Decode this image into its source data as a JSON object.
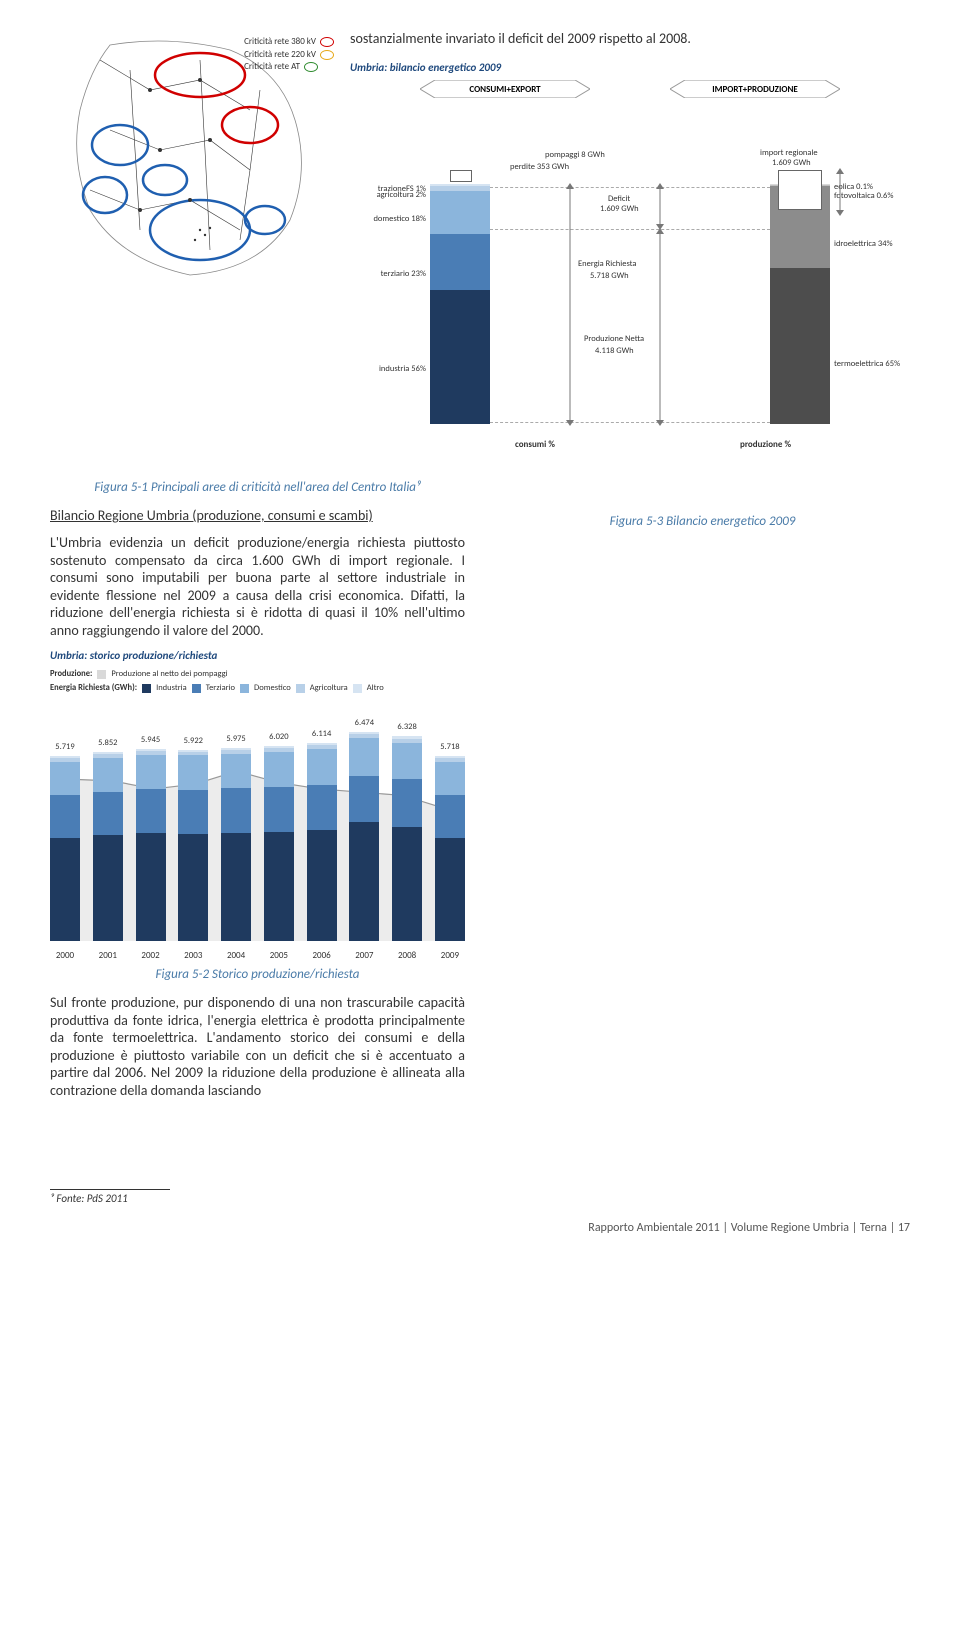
{
  "intro": "sostanzialmente invariato il deficit del 2009 rispetto al 2008.",
  "legend_criticita": {
    "l380": "Criticità rete 380 kV",
    "l220": "Criticità rete 220 kV",
    "lAT": "Criticità rete AT",
    "c380": "#d00000",
    "c220": "#e6a817",
    "cAT": "#2e8b2e"
  },
  "bilancio": {
    "title": "Umbria: bilancio energetico 2009",
    "tri_left": "CONSUMI+EXPORT",
    "tri_right": "IMPORT+PRODUZIONE",
    "labels": {
      "pompaggi": "pompaggi 8 GWh",
      "perdite": "perdite 353 GWh",
      "trazioneFS": "trazioneFS 1%",
      "agricoltura": "agricoltura 2%",
      "domestico": "domestico 18%",
      "terziario": "terziario 23%",
      "industria": "industria 56%",
      "energiaRichiesta": "Energia Richiesta",
      "energiaRichiestaVal": "5.718 GWh",
      "deficit": "Deficit",
      "deficitVal": "1.609 GWh",
      "produzioneNetta": "Produzione Netta",
      "produzioneNettaVal": "4.118 GWh",
      "importReg": "import regionale",
      "importRegVal": "1.609 GWh",
      "eolica": "eolica 0.1%",
      "fotovolt": "fotovoltaica 0.6%",
      "idro": "idroelettrica 34%",
      "termo": "termoelettrica 65%",
      "consumi_caption": "consumi %",
      "produzione_caption": "produzione %"
    },
    "consumi_colors": {
      "trazioneFS": "#d6e4f2",
      "agricoltura": "#b8d0e8",
      "domestico": "#8bb5dc",
      "terziario": "#4a7db5",
      "industria": "#1f3a5f"
    },
    "produzione_colors": {
      "eolica": "#d9d9d9",
      "fotovolt": "#bfbfbf",
      "idro": "#8c8c8c",
      "termo": "#4d4d4d"
    },
    "consumi_pct": {
      "trazioneFS": 1,
      "agricoltura": 2,
      "domestico": 18,
      "terziario": 23,
      "industria": 56
    },
    "produzione_pct": {
      "eolica": 0.1,
      "fotovolt": 0.6,
      "idro": 34,
      "termo": 65
    }
  },
  "fig51": "Figura 5-1 Principali aree di criticità nell'area del Centro Italia⁹",
  "fig52": "Figura 5-2 Storico produzione/richiesta",
  "fig53": "Figura 5-3 Bilancio energetico 2009",
  "bilancio_heading": "Bilancio Regione Umbria (produzione, consumi e scambi)",
  "para1": "L'Umbria evidenzia un deficit produzione/energia richiesta piuttosto sostenuto compensato da circa 1.600 GWh di import regionale. I consumi sono imputabili per buona parte al settore industriale in evidente flessione nel 2009 a causa della crisi economica. Difatti, la riduzione dell'energia richiesta si è ridotta di quasi il 10% nell'ultimo anno raggiungendo il valore del 2000.",
  "para2": "Sul fronte produzione, pur disponendo di una non trascurabile capacità produttiva da fonte idrica, l'energia elettrica è prodotta principalmente da fonte termoelettrica. L'andamento storico dei consumi e della produzione è piuttosto variabile con un deficit che si è accentuato a partire dal 2006. Nel 2009 la riduzione della produzione è allineata alla contrazione della domanda lasciando",
  "storico": {
    "title": "Umbria: storico produzione/richiesta",
    "legend": {
      "produzione_label": "Produzione:",
      "produzione_item": "Produzione al netto dei pompaggi",
      "energia_label": "Energia Richiesta (GWh):",
      "industria": "Industria",
      "terziario": "Terziario",
      "domestico": "Domestico",
      "agricoltura": "Agricoltura",
      "altro": "Altro"
    },
    "colors": {
      "industria": "#1f3a5f",
      "terziario": "#4a7db5",
      "domestico": "#8bb5dc",
      "agricoltura": "#b8d0e8",
      "altro": "#d6e4f2",
      "prod_box": "#d9d9d9"
    },
    "years": [
      "2000",
      "2001",
      "2002",
      "2003",
      "2004",
      "2005",
      "2006",
      "2007",
      "2008",
      "2009"
    ],
    "totals": [
      "5.719",
      "5.852",
      "5.945",
      "5.922",
      "5.975",
      "6.020",
      "6.114",
      "6.474",
      "6.328",
      "5.718"
    ],
    "values": [
      5719,
      5852,
      5945,
      5922,
      5975,
      6020,
      6114,
      6474,
      6328,
      5718
    ],
    "stack_pct": [
      [
        56,
        23,
        18,
        2,
        1
      ],
      [
        56,
        23,
        18,
        2,
        1
      ],
      [
        56,
        23,
        18,
        2,
        1
      ],
      [
        56,
        23,
        18,
        2,
        1
      ],
      [
        56,
        23,
        18,
        2,
        1
      ],
      [
        56,
        23,
        18,
        2,
        1
      ],
      [
        56,
        23,
        18,
        2,
        1
      ],
      [
        57,
        22,
        18,
        2,
        1
      ],
      [
        56,
        23,
        18,
        2,
        1
      ],
      [
        56,
        23,
        18,
        2,
        1
      ]
    ],
    "produzione": [
      5000,
      4950,
      4700,
      4850,
      5250,
      4900,
      4700,
      4600,
      4500,
      4100
    ],
    "ymax": 6800
  },
  "footnote": "⁹ Fonte: PdS 2011",
  "footer": "Rapporto Ambientale 2011 | Volume Regione Umbria | Terna | 17"
}
